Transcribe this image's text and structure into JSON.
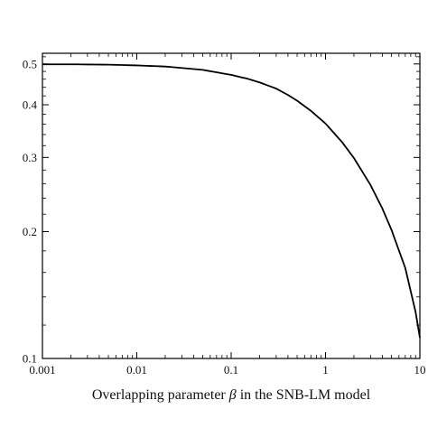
{
  "chart_data": {
    "type": "line",
    "title": "",
    "xlabel_prefix": "Overlapping parameter ",
    "xlabel_symbol": "β",
    "xlabel_suffix": " in the SNB-LM model",
    "ylabel": "",
    "xscale": "log",
    "yscale": "log",
    "xlim": [
      0.001,
      10
    ],
    "ylim": [
      0.1,
      0.53
    ],
    "grid": false,
    "legend": "none",
    "line_color": "#000000",
    "x_ticks": [
      {
        "value": 0.001,
        "label": "0.001"
      },
      {
        "value": 0.01,
        "label": "0.01"
      },
      {
        "value": 0.1,
        "label": "0.1"
      },
      {
        "value": 1,
        "label": "1"
      },
      {
        "value": 10,
        "label": "10"
      }
    ],
    "y_ticks": [
      {
        "value": 0.1,
        "label": "0.1"
      },
      {
        "value": 0.2,
        "label": "0.2"
      },
      {
        "value": 0.3,
        "label": "0.3"
      },
      {
        "value": 0.4,
        "label": "0.4"
      },
      {
        "value": 0.5,
        "label": "0.5"
      }
    ],
    "series": [
      {
        "x": [
          0.001,
          0.002,
          0.005,
          0.01,
          0.02,
          0.05,
          0.1,
          0.15,
          0.2,
          0.3,
          0.4,
          0.5,
          0.7,
          1,
          1.5,
          2,
          3,
          4,
          5,
          7,
          9,
          10
        ],
        "y": [
          0.499,
          0.499,
          0.498,
          0.496,
          0.493,
          0.484,
          0.471,
          0.461,
          0.452,
          0.437,
          0.422,
          0.409,
          0.387,
          0.361,
          0.326,
          0.299,
          0.258,
          0.227,
          0.202,
          0.164,
          0.129,
          0.112
        ]
      }
    ]
  }
}
